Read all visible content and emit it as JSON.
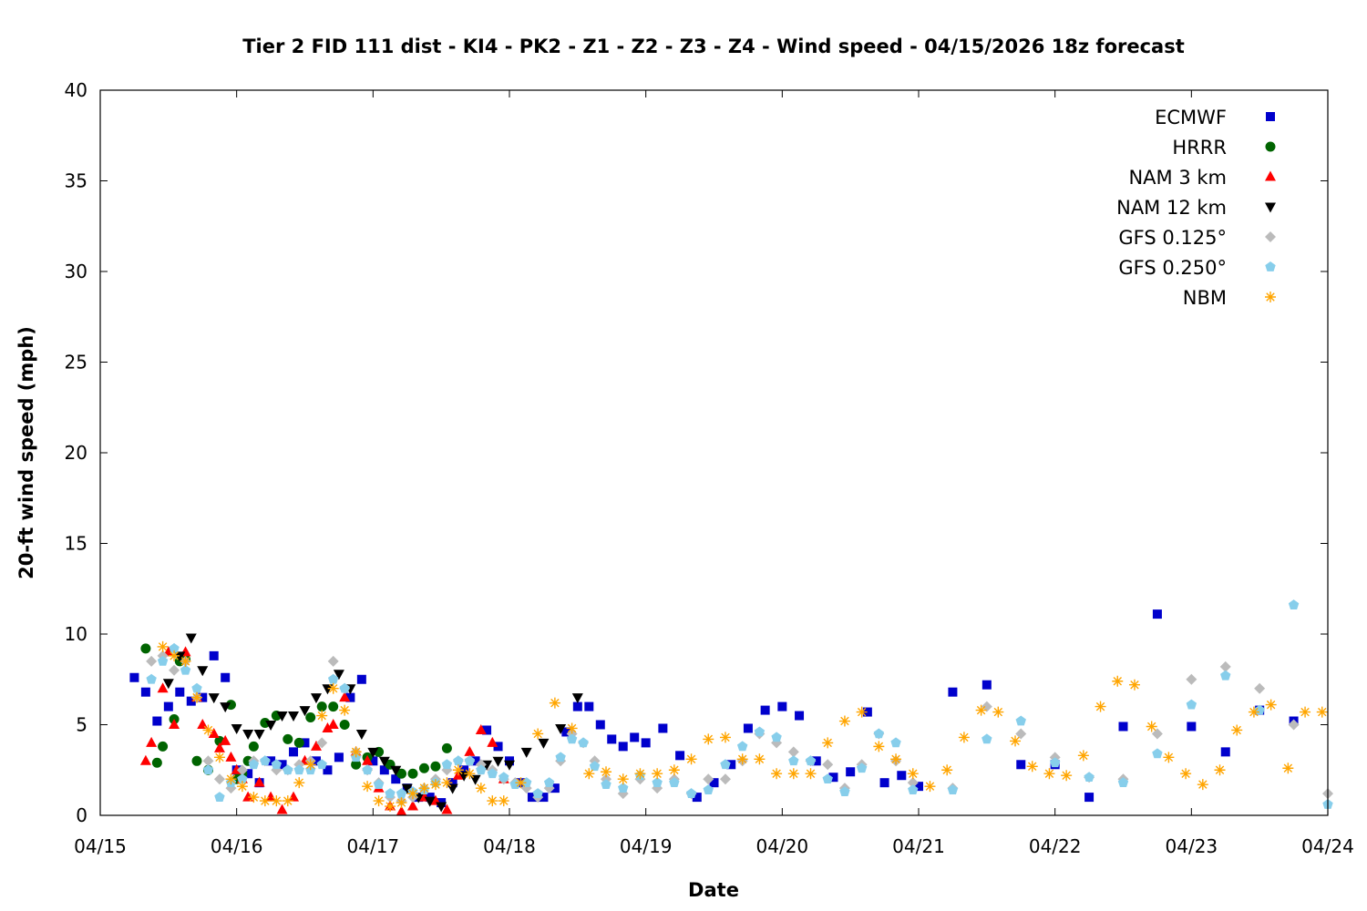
{
  "chart_data": {
    "type": "scatter",
    "title": "Tier 2 FID 111 dist - KI4 - PK2 - Z1 - Z2 - Z3 - Z4 - Wind speed - 04/15/2026 18z forecast",
    "xlabel": "Date",
    "ylabel": "20-ft wind speed (mph)",
    "xlim": [
      "04/15",
      "04/24"
    ],
    "ylim": [
      0,
      40
    ],
    "x_ticks": [
      "04/15",
      "04/16",
      "04/17",
      "04/18",
      "04/19",
      "04/20",
      "04/21",
      "04/22",
      "04/23",
      "04/24"
    ],
    "y_ticks": [
      0,
      5,
      10,
      15,
      20,
      25,
      30,
      35,
      40
    ],
    "grid": false,
    "legend_position": "top-right",
    "series": [
      {
        "name": "ECMWF",
        "color": "#0000cc",
        "marker": "square",
        "x": [
          "04/15 06:00",
          "04/15 08:00",
          "04/15 10:00",
          "04/15 12:00",
          "04/15 14:00",
          "04/15 16:00",
          "04/15 18:00",
          "04/15 20:00",
          "04/15 22:00",
          "04/16 00:00",
          "04/16 02:00",
          "04/16 04:00",
          "04/16 06:00",
          "04/16 08:00",
          "04/16 10:00",
          "04/16 12:00",
          "04/16 14:00",
          "04/16 16:00",
          "04/16 18:00",
          "04/16 20:00",
          "04/16 22:00",
          "04/17 00:00",
          "04/17 02:00",
          "04/17 04:00",
          "04/17 06:00",
          "04/17 08:00",
          "04/17 10:00",
          "04/17 12:00",
          "04/17 14:00",
          "04/17 16:00",
          "04/17 18:00",
          "04/17 20:00",
          "04/17 22:00",
          "04/18 00:00",
          "04/18 02:00",
          "04/18 04:00",
          "04/18 06:00",
          "04/18 08:00",
          "04/18 10:00",
          "04/18 12:00",
          "04/18 14:00",
          "04/18 16:00",
          "04/18 18:00",
          "04/18 20:00",
          "04/18 22:00",
          "04/19 00:00",
          "04/19 03:00",
          "04/19 06:00",
          "04/19 09:00",
          "04/19 12:00",
          "04/19 15:00",
          "04/19 18:00",
          "04/19 21:00",
          "04/20 00:00",
          "04/20 03:00",
          "04/20 06:00",
          "04/20 09:00",
          "04/20 12:00",
          "04/20 15:00",
          "04/20 18:00",
          "04/20 21:00",
          "04/21 00:00",
          "04/21 06:00",
          "04/21 12:00",
          "04/21 18:00",
          "04/22 00:00",
          "04/22 06:00",
          "04/22 12:00",
          "04/22 18:00",
          "04/23 00:00",
          "04/23 06:00",
          "04/23 12:00",
          "04/23 18:00"
        ],
        "y": [
          7.6,
          6.8,
          5.2,
          6.0,
          6.8,
          6.3,
          6.5,
          8.8,
          7.6,
          2.5,
          2.3,
          1.8,
          3.0,
          2.8,
          3.5,
          4.0,
          3.0,
          2.5,
          3.2,
          6.5,
          7.5,
          3.0,
          2.5,
          2.0,
          1.5,
          1.0,
          1.0,
          0.7,
          1.8,
          2.5,
          3.0,
          4.7,
          3.8,
          3.0,
          1.8,
          1.0,
          1.0,
          1.5,
          4.6,
          6.0,
          6.0,
          5.0,
          4.2,
          3.8,
          4.3,
          4.0,
          4.8,
          3.3,
          1.0,
          1.8,
          2.8,
          4.8,
          5.8,
          6.0,
          5.5,
          3.0,
          2.1,
          2.4,
          5.7,
          1.8,
          2.2,
          1.6,
          6.8,
          7.2,
          2.8,
          2.8,
          1.0,
          4.9,
          11.1,
          4.9,
          3.5,
          5.8,
          5.2
        ]
      },
      {
        "name": "HRRR",
        "color": "#006400",
        "marker": "circle",
        "x": [
          "04/15 08:00",
          "04/15 10:00",
          "04/15 11:00",
          "04/15 13:00",
          "04/15 14:00",
          "04/15 15:00",
          "04/15 17:00",
          "04/15 19:00",
          "04/15 21:00",
          "04/15 23:00",
          "04/16 00:00",
          "04/16 01:00",
          "04/16 02:00",
          "04/16 03:00",
          "04/16 05:00",
          "04/16 07:00",
          "04/16 09:00",
          "04/16 11:00",
          "04/16 13:00",
          "04/16 15:00",
          "04/16 17:00",
          "04/16 19:00",
          "04/16 21:00",
          "04/16 23:00",
          "04/17 01:00",
          "04/17 03:00",
          "04/17 05:00",
          "04/17 07:00",
          "04/17 09:00",
          "04/17 11:00",
          "04/17 13:00"
        ],
        "y": [
          9.2,
          2.9,
          3.8,
          5.3,
          8.5,
          8.6,
          3.0,
          2.5,
          4.1,
          6.1,
          2.0,
          2.3,
          3.0,
          3.8,
          5.1,
          5.5,
          4.2,
          4.0,
          5.4,
          6.0,
          6.0,
          5.0,
          2.8,
          3.2,
          3.5,
          2.8,
          2.3,
          2.3,
          2.6,
          2.7,
          3.7
        ]
      },
      {
        "name": "NAM 3 km",
        "color": "#ff0000",
        "marker": "triangle-up",
        "x": [
          "04/15 08:00",
          "04/15 09:00",
          "04/15 11:00",
          "04/15 12:00",
          "04/15 13:00",
          "04/15 15:00",
          "04/15 17:00",
          "04/15 18:00",
          "04/15 20:00",
          "04/15 21:00",
          "04/15 22:00",
          "04/15 23:00",
          "04/16 00:00",
          "04/16 01:00",
          "04/16 02:00",
          "04/16 04:00",
          "04/16 06:00",
          "04/16 08:00",
          "04/16 10:00",
          "04/16 12:00",
          "04/16 14:00",
          "04/16 16:00",
          "04/16 17:00",
          "04/16 19:00",
          "04/16 21:00",
          "04/16 23:00",
          "04/17 01:00",
          "04/17 03:00",
          "04/17 05:00",
          "04/17 07:00",
          "04/17 09:00",
          "04/17 11:00",
          "04/17 13:00",
          "04/17 15:00",
          "04/17 17:00",
          "04/17 19:00",
          "04/17 21:00",
          "04/17 23:00"
        ],
        "y": [
          3.0,
          4.0,
          7.0,
          9.0,
          5.0,
          9.0,
          6.5,
          5.0,
          4.5,
          3.7,
          4.1,
          3.2,
          2.5,
          2.0,
          1.0,
          1.8,
          1.0,
          0.3,
          1.0,
          3.0,
          3.8,
          4.8,
          5.0,
          6.5,
          3.5,
          3.0,
          1.5,
          0.5,
          0.2,
          0.5,
          1.0,
          0.8,
          0.3,
          2.2,
          3.5,
          4.7,
          4.0,
          2.0
        ]
      },
      {
        "name": "NAM 12 km",
        "color": "#000000",
        "marker": "triangle-down",
        "x": [
          "04/15 12:00",
          "04/15 14:00",
          "04/15 16:00",
          "04/15 18:00",
          "04/15 20:00",
          "04/15 22:00",
          "04/16 00:00",
          "04/16 02:00",
          "04/16 04:00",
          "04/16 06:00",
          "04/16 08:00",
          "04/16 10:00",
          "04/16 12:00",
          "04/16 14:00",
          "04/16 16:00",
          "04/16 18:00",
          "04/16 20:00",
          "04/16 22:00",
          "04/17 00:00",
          "04/17 02:00",
          "04/17 04:00",
          "04/17 06:00",
          "04/17 08:00",
          "04/17 10:00",
          "04/17 12:00",
          "04/17 14:00",
          "04/17 16:00",
          "04/17 18:00",
          "04/17 20:00",
          "04/17 22:00",
          "04/18 00:00",
          "04/18 03:00",
          "04/18 06:00",
          "04/18 09:00",
          "04/18 12:00"
        ],
        "y": [
          7.3,
          8.8,
          9.8,
          8.0,
          6.5,
          6.0,
          4.8,
          4.5,
          4.5,
          5.0,
          5.5,
          5.5,
          5.8,
          6.5,
          7.0,
          7.8,
          7.0,
          4.5,
          3.5,
          3.0,
          2.5,
          1.5,
          1.0,
          0.8,
          0.5,
          1.5,
          2.2,
          2.0,
          2.8,
          3.0,
          2.8,
          3.5,
          4.0,
          4.8,
          6.5
        ]
      },
      {
        "name": "GFS 0.125°",
        "color": "#bbbbbb",
        "marker": "diamond",
        "x": [
          "04/15 09:00",
          "04/15 11:00",
          "04/15 13:00",
          "04/15 15:00",
          "04/15 17:00",
          "04/15 19:00",
          "04/15 21:00",
          "04/15 23:00",
          "04/16 01:00",
          "04/16 03:00",
          "04/16 05:00",
          "04/16 07:00",
          "04/16 09:00",
          "04/16 11:00",
          "04/16 13:00",
          "04/16 15:00",
          "04/16 17:00",
          "04/16 19:00",
          "04/16 21:00",
          "04/16 23:00",
          "04/17 01:00",
          "04/17 03:00",
          "04/17 05:00",
          "04/17 07:00",
          "04/17 09:00",
          "04/17 11:00",
          "04/17 13:00",
          "04/17 15:00",
          "04/17 17:00",
          "04/17 19:00",
          "04/17 21:00",
          "04/17 23:00",
          "04/18 01:00",
          "04/18 03:00",
          "04/18 05:00",
          "04/18 07:00",
          "04/18 09:00",
          "04/18 11:00",
          "04/18 13:00",
          "04/18 15:00",
          "04/18 17:00",
          "04/18 20:00",
          "04/18 23:00",
          "04/19 02:00",
          "04/19 05:00",
          "04/19 08:00",
          "04/19 11:00",
          "04/19 14:00",
          "04/19 17:00",
          "04/19 20:00",
          "04/19 23:00",
          "04/20 02:00",
          "04/20 05:00",
          "04/20 08:00",
          "04/20 11:00",
          "04/20 14:00",
          "04/20 17:00",
          "04/20 20:00",
          "04/20 23:00",
          "04/21 06:00",
          "04/21 12:00",
          "04/21 18:00",
          "04/22 00:00",
          "04/22 06:00",
          "04/22 12:00",
          "04/22 18:00",
          "04/23 00:00",
          "04/23 06:00",
          "04/23 12:00",
          "04/23 18:00",
          "04/24 00:00"
        ],
        "y": [
          8.5,
          8.8,
          8.0,
          8.5,
          6.5,
          3.0,
          2.0,
          1.5,
          2.5,
          3.0,
          3.0,
          2.5,
          2.5,
          2.8,
          3.0,
          4.0,
          8.5,
          7.0,
          3.5,
          2.5,
          1.8,
          1.0,
          0.8,
          1.0,
          1.5,
          2.0,
          2.5,
          3.0,
          3.0,
          2.8,
          2.5,
          2.0,
          1.8,
          1.5,
          1.0,
          1.5,
          3.0,
          4.5,
          4.0,
          3.0,
          2.0,
          1.2,
          2.0,
          1.5,
          2.0,
          1.2,
          2.0,
          2.0,
          3.0,
          4.5,
          4.0,
          3.5,
          3.0,
          2.8,
          1.5,
          2.8,
          4.5,
          3.0,
          1.8,
          1.5,
          6.0,
          4.5,
          3.2,
          2.1,
          2.0,
          4.5,
          7.5,
          8.2,
          7.0,
          5.0,
          1.2
        ]
      },
      {
        "name": "GFS 0.250°",
        "color": "#87ceeb",
        "marker": "pentagon",
        "x": [
          "04/15 09:00",
          "04/15 11:00",
          "04/15 13:00",
          "04/15 15:00",
          "04/15 17:00",
          "04/15 19:00",
          "04/15 21:00",
          "04/15 23:00",
          "04/16 01:00",
          "04/16 03:00",
          "04/16 05:00",
          "04/16 07:00",
          "04/16 09:00",
          "04/16 11:00",
          "04/16 13:00",
          "04/16 15:00",
          "04/16 17:00",
          "04/16 19:00",
          "04/16 21:00",
          "04/16 23:00",
          "04/17 01:00",
          "04/17 03:00",
          "04/17 05:00",
          "04/17 07:00",
          "04/17 09:00",
          "04/17 11:00",
          "04/17 13:00",
          "04/17 15:00",
          "04/17 17:00",
          "04/17 19:00",
          "04/17 21:00",
          "04/17 23:00",
          "04/18 01:00",
          "04/18 03:00",
          "04/18 05:00",
          "04/18 07:00",
          "04/18 09:00",
          "04/18 11:00",
          "04/18 13:00",
          "04/18 15:00",
          "04/18 17:00",
          "04/18 20:00",
          "04/18 23:00",
          "04/19 02:00",
          "04/19 05:00",
          "04/19 08:00",
          "04/19 11:00",
          "04/19 14:00",
          "04/19 17:00",
          "04/19 20:00",
          "04/19 23:00",
          "04/20 02:00",
          "04/20 05:00",
          "04/20 08:00",
          "04/20 11:00",
          "04/20 14:00",
          "04/20 17:00",
          "04/20 20:00",
          "04/20 23:00",
          "04/21 06:00",
          "04/21 12:00",
          "04/21 18:00",
          "04/22 00:00",
          "04/22 06:00",
          "04/22 12:00",
          "04/22 18:00",
          "04/23 00:00",
          "04/23 06:00",
          "04/23 12:00",
          "04/23 18:00",
          "04/24 00:00"
        ],
        "y": [
          7.5,
          8.5,
          9.2,
          8.0,
          7.0,
          2.5,
          1.0,
          1.8,
          2.0,
          2.8,
          3.0,
          2.8,
          2.5,
          2.5,
          2.5,
          2.8,
          7.5,
          7.0,
          3.2,
          2.5,
          1.7,
          1.2,
          1.2,
          1.3,
          1.4,
          1.8,
          2.8,
          3.0,
          3.0,
          2.5,
          2.3,
          2.1,
          1.7,
          1.8,
          1.2,
          1.8,
          3.2,
          4.2,
          4.0,
          2.7,
          1.7,
          1.5,
          2.2,
          1.8,
          1.8,
          1.2,
          1.4,
          2.8,
          3.8,
          4.6,
          4.3,
          3.0,
          3.0,
          2.0,
          1.3,
          2.6,
          4.5,
          4.0,
          1.4,
          1.4,
          4.2,
          5.2,
          2.9,
          2.1,
          1.8,
          3.4,
          6.1,
          7.7,
          5.8,
          11.6,
          0.6
        ]
      },
      {
        "name": "NBM",
        "color": "#ffa500",
        "marker": "asterisk",
        "x": [
          "04/15 11:00",
          "04/15 13:00",
          "04/15 15:00",
          "04/15 17:00",
          "04/15 19:00",
          "04/15 21:00",
          "04/15 23:00",
          "04/16 01:00",
          "04/16 03:00",
          "04/16 05:00",
          "04/16 07:00",
          "04/16 09:00",
          "04/16 11:00",
          "04/16 13:00",
          "04/16 15:00",
          "04/16 17:00",
          "04/16 19:00",
          "04/16 21:00",
          "04/16 23:00",
          "04/17 01:00",
          "04/17 03:00",
          "04/17 05:00",
          "04/17 07:00",
          "04/17 09:00",
          "04/17 11:00",
          "04/17 13:00",
          "04/17 15:00",
          "04/17 17:00",
          "04/17 19:00",
          "04/17 21:00",
          "04/17 23:00",
          "04/18 02:00",
          "04/18 05:00",
          "04/18 08:00",
          "04/18 11:00",
          "04/18 14:00",
          "04/18 17:00",
          "04/18 20:00",
          "04/18 23:00",
          "04/19 02:00",
          "04/19 05:00",
          "04/19 08:00",
          "04/19 11:00",
          "04/19 14:00",
          "04/19 17:00",
          "04/19 20:00",
          "04/19 23:00",
          "04/20 02:00",
          "04/20 05:00",
          "04/20 08:00",
          "04/20 11:00",
          "04/20 14:00",
          "04/20 17:00",
          "04/20 20:00",
          "04/20 23:00",
          "04/21 02:00",
          "04/21 05:00",
          "04/21 08:00",
          "04/21 11:00",
          "04/21 14:00",
          "04/21 17:00",
          "04/21 20:00",
          "04/21 23:00",
          "04/22 02:00",
          "04/22 05:00",
          "04/22 08:00",
          "04/22 11:00",
          "04/22 14:00",
          "04/22 17:00",
          "04/22 20:00",
          "04/22 23:00",
          "04/23 02:00",
          "04/23 05:00",
          "04/23 08:00",
          "04/23 11:00",
          "04/23 14:00",
          "04/23 17:00",
          "04/23 20:00",
          "04/23 23:00"
        ],
        "y": [
          9.3,
          8.8,
          8.5,
          6.5,
          4.7,
          3.2,
          2.0,
          1.6,
          1.0,
          0.8,
          0.8,
          0.8,
          1.8,
          2.8,
          5.5,
          7.0,
          5.8,
          3.5,
          1.6,
          0.8,
          0.5,
          0.7,
          1.2,
          1.5,
          1.7,
          1.8,
          2.5,
          2.3,
          1.5,
          0.8,
          0.8,
          1.8,
          4.5,
          6.2,
          4.8,
          2.3,
          2.4,
          2.0,
          2.3,
          2.3,
          2.5,
          3.1,
          4.2,
          4.3,
          3.1,
          3.1,
          2.3,
          2.3,
          2.3,
          4.0,
          5.2,
          5.7,
          3.8,
          3.1,
          2.3,
          1.6,
          2.5,
          4.3,
          5.8,
          5.7,
          4.1,
          2.7,
          2.3,
          2.2,
          3.3,
          6.0,
          7.4,
          7.2,
          4.9,
          3.2,
          2.3,
          1.7,
          2.5,
          4.7,
          5.7,
          6.1,
          2.6,
          5.7,
          5.7
        ]
      }
    ]
  }
}
